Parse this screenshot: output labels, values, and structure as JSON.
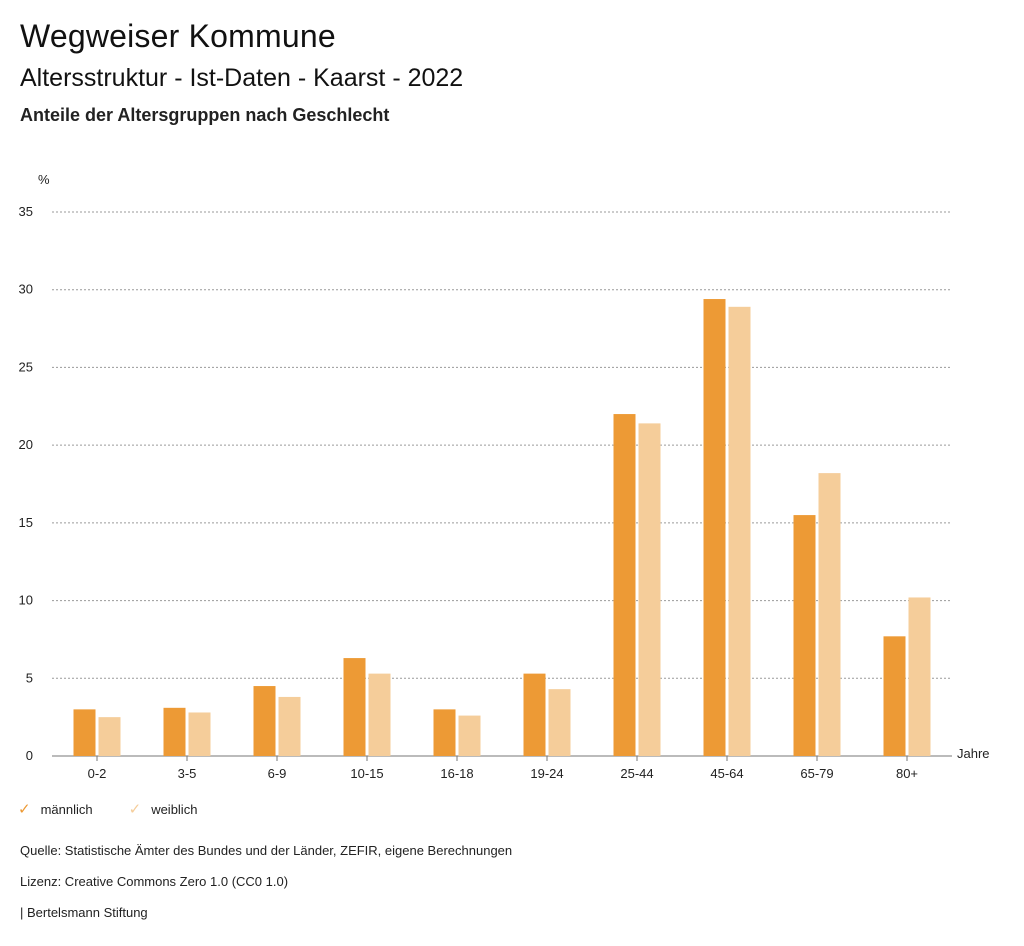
{
  "header": {
    "title": "Wegweiser Kommune",
    "subtitle": "Altersstruktur - Ist-Daten - Kaarst - 2022",
    "subsubtitle": "Anteile der Altersgruppen nach Geschlecht"
  },
  "chart_data": {
    "type": "bar",
    "ylabel": "%",
    "xlabel": "Jahre",
    "ylim": [
      0,
      35
    ],
    "yticks": [
      0,
      5,
      10,
      15,
      20,
      25,
      30,
      35
    ],
    "grid": true,
    "legend_placement": "bottom-left",
    "categories": [
      "0-2",
      "3-5",
      "6-9",
      "10-15",
      "16-18",
      "19-24",
      "25-44",
      "45-64",
      "65-79",
      "80+"
    ],
    "series": [
      {
        "name": "männlich",
        "color": "#ED9A35",
        "values": [
          3.0,
          3.1,
          4.5,
          6.3,
          3.0,
          5.3,
          22.0,
          29.4,
          15.5,
          7.7
        ]
      },
      {
        "name": "weiblich",
        "color": "#F5CD9A",
        "values": [
          2.5,
          2.8,
          3.8,
          5.3,
          2.6,
          4.3,
          21.4,
          28.9,
          18.2,
          10.2
        ]
      }
    ]
  },
  "legend": {
    "male_label": "männlich",
    "female_label": "weiblich",
    "male_icon": "check-icon",
    "female_icon": "check-icon"
  },
  "footer": {
    "source": "Quelle: Statistische Ämter des Bundes und der Länder, ZEFIR, eigene Berechnungen",
    "license": "Lizenz: Creative Commons Zero 1.0 (CC0 1.0)",
    "publisher": "| Bertelsmann Stiftung"
  }
}
